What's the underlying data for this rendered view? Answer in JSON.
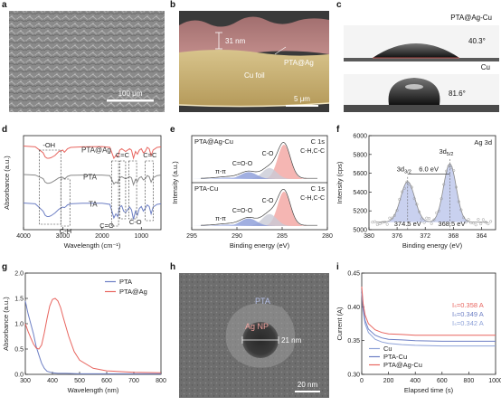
{
  "panels": {
    "a": {
      "label": "a",
      "scale_bar": "100 μm"
    },
    "b": {
      "label": "b",
      "scale_bar": "5 μm",
      "thickness": "31 nm",
      "layer_label": "PTA@Ag",
      "substrate_label": "Cu foil"
    },
    "c": {
      "label": "c",
      "title": "PTA@Ag-Cu",
      "angle_top": "40.3°",
      "sample_mid": "Cu",
      "angle_bottom": "81.6°"
    },
    "h": {
      "label": "h",
      "pta_label": "PTA",
      "np_label": "Ag NP",
      "size_label": "21 nm",
      "scale_bar": "20 nm"
    }
  },
  "colors": {
    "red": "#e8655f",
    "blue": "#6d7fc4",
    "gray": "#8a8a8a",
    "black": "#111111"
  },
  "chart_data": [
    {
      "id": "d",
      "label": "d",
      "type": "line",
      "xlabel": "Wavelength (cm⁻¹)",
      "ylabel": "Absorbance (a.u.)",
      "xlim": [
        4000,
        500
      ],
      "xticks": [
        4000,
        3000,
        2000,
        1000
      ],
      "series": [
        {
          "name": "PTA@Ag",
          "color": "#e8655f",
          "offset": 2.0,
          "x": [
            4000,
            3700,
            3500,
            3450,
            3400,
            3350,
            3300,
            3200,
            3100,
            3000,
            2960,
            2920,
            2880,
            2800,
            2500,
            2000,
            1800,
            1700,
            1650,
            1600,
            1550,
            1500,
            1450,
            1400,
            1300,
            1250,
            1200,
            1150,
            1100,
            1050,
            1000,
            950,
            900,
            850,
            800,
            750,
            700,
            600,
            500
          ],
          "y": [
            0.95,
            0.92,
            0.7,
            0.55,
            0.5,
            0.5,
            0.52,
            0.6,
            0.75,
            0.8,
            0.72,
            0.78,
            0.85,
            0.9,
            0.92,
            0.93,
            0.9,
            0.5,
            0.6,
            0.55,
            0.8,
            0.85,
            0.8,
            0.75,
            0.85,
            0.8,
            0.5,
            0.75,
            0.65,
            0.8,
            0.85,
            0.7,
            0.75,
            0.9,
            0.85,
            0.6,
            0.8,
            0.9,
            0.92
          ]
        },
        {
          "name": "PTA",
          "color": "#8a8a8a",
          "offset": 1.0,
          "x": [
            4000,
            3700,
            3500,
            3450,
            3400,
            3350,
            3300,
            3200,
            3100,
            3000,
            2960,
            2920,
            2880,
            2800,
            2500,
            2000,
            1800,
            1700,
            1650,
            1600,
            1550,
            1500,
            1450,
            1400,
            1300,
            1250,
            1200,
            1150,
            1100,
            1050,
            1000,
            950,
            900,
            850,
            800,
            750,
            700,
            600,
            500
          ],
          "y": [
            0.9,
            0.88,
            0.75,
            0.62,
            0.58,
            0.58,
            0.6,
            0.68,
            0.78,
            0.8,
            0.74,
            0.78,
            0.83,
            0.87,
            0.88,
            0.88,
            0.86,
            0.55,
            0.62,
            0.58,
            0.78,
            0.82,
            0.78,
            0.74,
            0.82,
            0.78,
            0.52,
            0.72,
            0.64,
            0.78,
            0.82,
            0.7,
            0.74,
            0.86,
            0.82,
            0.62,
            0.78,
            0.86,
            0.88
          ]
        },
        {
          "name": "TA",
          "color": "#6d7fc4",
          "offset": 0.0,
          "x": [
            4000,
            3700,
            3500,
            3450,
            3400,
            3350,
            3300,
            3200,
            3100,
            3000,
            2960,
            2920,
            2880,
            2800,
            2500,
            2000,
            1800,
            1700,
            1650,
            1600,
            1550,
            1500,
            1450,
            1400,
            1300,
            1250,
            1200,
            1150,
            1100,
            1050,
            1000,
            950,
            900,
            850,
            800,
            750,
            700,
            600,
            500
          ],
          "y": [
            0.85,
            0.82,
            0.55,
            0.4,
            0.35,
            0.35,
            0.38,
            0.48,
            0.62,
            0.7,
            0.68,
            0.72,
            0.78,
            0.82,
            0.84,
            0.84,
            0.8,
            0.3,
            0.45,
            0.35,
            0.7,
            0.75,
            0.55,
            0.5,
            0.7,
            0.6,
            0.25,
            0.55,
            0.4,
            0.65,
            0.72,
            0.55,
            0.65,
            0.78,
            0.72,
            0.45,
            0.7,
            0.8,
            0.82
          ]
        }
      ],
      "annotations": [
        "-OH",
        "C-H",
        "C=O",
        "C=C",
        "C-O",
        "C=C"
      ]
    },
    {
      "id": "e",
      "label": "e",
      "type": "area",
      "xlabel": "Binding energy (eV)",
      "ylabel": "Intensity (a.u.)",
      "xlim": [
        295,
        280
      ],
      "xticks": [
        295,
        290,
        285,
        280
      ],
      "subplots": [
        {
          "title": "PTA@Ag-Cu",
          "core_level": "C 1s",
          "labels": [
            "C-H,C-C",
            "C-O",
            "C=O-O",
            "π-π"
          ],
          "peaks": [
            {
              "center": 284.8,
              "height": 1.0,
              "width": 0.7,
              "color": "#f2a4a0"
            },
            {
              "center": 286.4,
              "height": 0.32,
              "width": 0.8,
              "color": "#c9cbd6"
            },
            {
              "center": 288.7,
              "height": 0.2,
              "width": 0.9,
              "color": "#8a9bd8"
            },
            {
              "center": 291.0,
              "height": 0.05,
              "width": 1.2,
              "color": "#b7c2ea"
            }
          ]
        },
        {
          "title": "PTA-Cu",
          "core_level": "C 1s",
          "labels": [
            "C-H,C-C",
            "C-O",
            "C=O-O",
            "π-π"
          ],
          "peaks": [
            {
              "center": 284.8,
              "height": 1.0,
              "width": 0.7,
              "color": "#f2a4a0"
            },
            {
              "center": 286.4,
              "height": 0.35,
              "width": 0.8,
              "color": "#c9cbd6"
            },
            {
              "center": 288.7,
              "height": 0.22,
              "width": 0.9,
              "color": "#8a9bd8"
            },
            {
              "center": 291.0,
              "height": 0.05,
              "width": 1.2,
              "color": "#b7c2ea"
            }
          ]
        }
      ]
    },
    {
      "id": "f",
      "label": "f",
      "type": "area",
      "title": "Ag 3d",
      "xlabel": "Binding energy (eV)",
      "ylabel": "Intensity (cps)",
      "xlim": [
        380,
        362
      ],
      "xticks": [
        380,
        376,
        372,
        368,
        364
      ],
      "ylim": [
        5000,
        6000
      ],
      "yticks": [
        5000,
        5200,
        5400,
        5600,
        5800,
        6000
      ],
      "baseline": 5080,
      "peaks": [
        {
          "center": 374.5,
          "height": 430,
          "width": 1.0,
          "label": "3d",
          "sub": "3/2"
        },
        {
          "center": 368.5,
          "height": 620,
          "width": 0.9,
          "label": "3d",
          "sub": "5/2"
        }
      ],
      "annotations": {
        "split": "6.0 eV",
        "peak1": "374.5 eV",
        "peak2": "368.5 eV"
      }
    },
    {
      "id": "g",
      "label": "g",
      "type": "line",
      "xlabel": "Wavelength (nm)",
      "ylabel": "Absorbance (a.u.)",
      "xlim": [
        300,
        800
      ],
      "xticks": [
        300,
        400,
        500,
        600,
        700,
        800
      ],
      "ylim": [
        0,
        2.0
      ],
      "yticks": [
        0.0,
        0.5,
        1.0,
        1.5,
        2.0
      ],
      "legend": "top-right",
      "series": [
        {
          "name": "PTA",
          "color": "#6d7fc4",
          "x": [
            300,
            310,
            320,
            330,
            340,
            350,
            360,
            370,
            380,
            400,
            420,
            450,
            500,
            550,
            600,
            700,
            800
          ],
          "y": [
            1.45,
            1.2,
            1.0,
            0.8,
            0.55,
            0.38,
            0.22,
            0.12,
            0.06,
            0.03,
            0.02,
            0.02,
            0.01,
            0.01,
            0.01,
            0.01,
            0.01
          ]
        },
        {
          "name": "PTA@Ag",
          "color": "#e8655f",
          "x": [
            300,
            310,
            320,
            330,
            340,
            350,
            360,
            370,
            380,
            390,
            400,
            410,
            420,
            430,
            440,
            460,
            480,
            500,
            550,
            600,
            700,
            800
          ],
          "y": [
            1.0,
            0.85,
            0.72,
            0.6,
            0.52,
            0.5,
            0.58,
            0.82,
            1.1,
            1.35,
            1.48,
            1.5,
            1.45,
            1.32,
            1.12,
            0.75,
            0.45,
            0.28,
            0.12,
            0.07,
            0.04,
            0.03
          ]
        }
      ]
    },
    {
      "id": "i",
      "label": "i",
      "type": "line",
      "xlabel": "Elapsed time (s)",
      "ylabel": "Current (A)",
      "xlim": [
        0,
        1000
      ],
      "xticks": [
        0,
        200,
        400,
        600,
        800,
        1000
      ],
      "ylim": [
        0.3,
        0.45
      ],
      "yticks": [
        0.3,
        0.35,
        0.4,
        0.45
      ],
      "legend": "bottom-left",
      "series": [
        {
          "name": "Cu",
          "color": "#8ea2d8",
          "x": [
            0,
            10,
            25,
            50,
            100,
            150,
            200,
            300,
            400,
            600,
            800,
            1000
          ],
          "y": [
            0.42,
            0.395,
            0.375,
            0.362,
            0.352,
            0.348,
            0.346,
            0.344,
            0.343,
            0.342,
            0.342,
            0.342
          ]
        },
        {
          "name": "PTA-Cu",
          "color": "#6d7fc4",
          "x": [
            0,
            10,
            25,
            50,
            100,
            150,
            200,
            300,
            400,
            600,
            800,
            1000
          ],
          "y": [
            0.425,
            0.4,
            0.38,
            0.367,
            0.358,
            0.354,
            0.352,
            0.351,
            0.35,
            0.349,
            0.349,
            0.349
          ]
        },
        {
          "name": "PTA@Ag-Cu",
          "color": "#e8655f",
          "x": [
            0,
            10,
            25,
            50,
            100,
            150,
            200,
            300,
            400,
            600,
            800,
            1000
          ],
          "y": [
            0.43,
            0.405,
            0.388,
            0.375,
            0.366,
            0.362,
            0.36,
            0.359,
            0.358,
            0.358,
            0.358,
            0.358
          ]
        }
      ],
      "annotations": [
        {
          "text": "Iₛ=0.358 A",
          "color": "#e8655f"
        },
        {
          "text": "Iₛ=0.349 A",
          "color": "#6d7fc4"
        },
        {
          "text": "Iₛ=0.342 A",
          "color": "#8ea2d8"
        }
      ]
    }
  ]
}
